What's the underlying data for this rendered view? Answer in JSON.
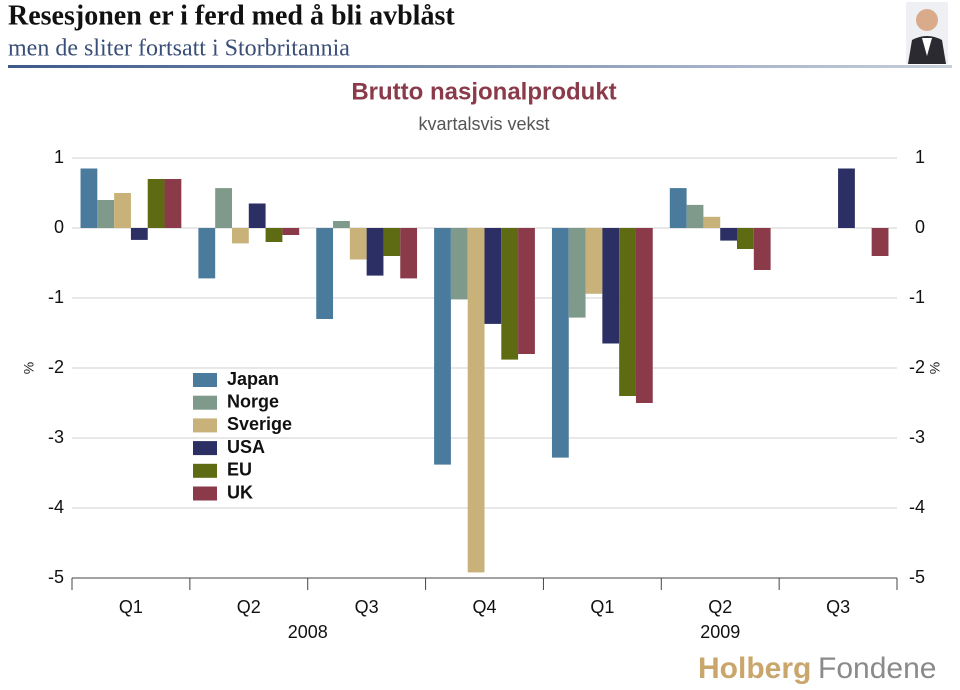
{
  "header": {
    "title": "Resesjonen er i ferd med å bli avblåst",
    "subtitle": "men de sliter fortsatt i Storbritannia"
  },
  "logo": [
    "Holberg",
    "Fondene"
  ],
  "chart_data": {
    "type": "bar",
    "title": "Brutto nasjonalprodukt",
    "subtitle": "kvartalsvis vekst",
    "ylabel": "%",
    "y2label": "%",
    "groups": [
      {
        "label": "2008",
        "categories": [
          "Q1",
          "Q2",
          "Q3",
          "Q4"
        ]
      },
      {
        "label": "2009",
        "categories": [
          "Q1",
          "Q2",
          "Q3"
        ]
      }
    ],
    "series": [
      {
        "name": "Japan",
        "color": "#4a7a9c",
        "values": [
          0.85,
          -0.72,
          -1.3,
          -3.38,
          -3.28,
          0.57,
          null
        ]
      },
      {
        "name": "Norge",
        "color": "#7f9a8a",
        "values": [
          0.4,
          0.57,
          0.1,
          -1.02,
          -1.28,
          0.33,
          null
        ]
      },
      {
        "name": "Sverige",
        "color": "#c8b27a",
        "values": [
          0.5,
          -0.22,
          -0.45,
          -4.92,
          -0.94,
          0.16,
          null
        ]
      },
      {
        "name": "USA",
        "color": "#2b2f63",
        "values": [
          -0.17,
          0.35,
          -0.68,
          -1.37,
          -1.65,
          -0.18,
          0.85
        ]
      },
      {
        "name": "EU",
        "color": "#5e6b12",
        "values": [
          0.7,
          -0.2,
          -0.4,
          -1.88,
          -2.4,
          -0.3,
          null
        ]
      },
      {
        "name": "UK",
        "color": "#8b3a4a",
        "values": [
          0.7,
          -0.1,
          -0.72,
          -1.8,
          -2.5,
          -0.6,
          -0.4
        ]
      }
    ],
    "ylim": [
      -5,
      1
    ],
    "yticks": [
      -5,
      -4,
      -3,
      -2,
      -1,
      0,
      1
    ],
    "y2lim": [
      -5,
      1
    ],
    "y2ticks": [
      -5,
      -4,
      -3,
      -2,
      -1,
      0,
      1
    ],
    "grid": true,
    "legend": "lower-left"
  }
}
